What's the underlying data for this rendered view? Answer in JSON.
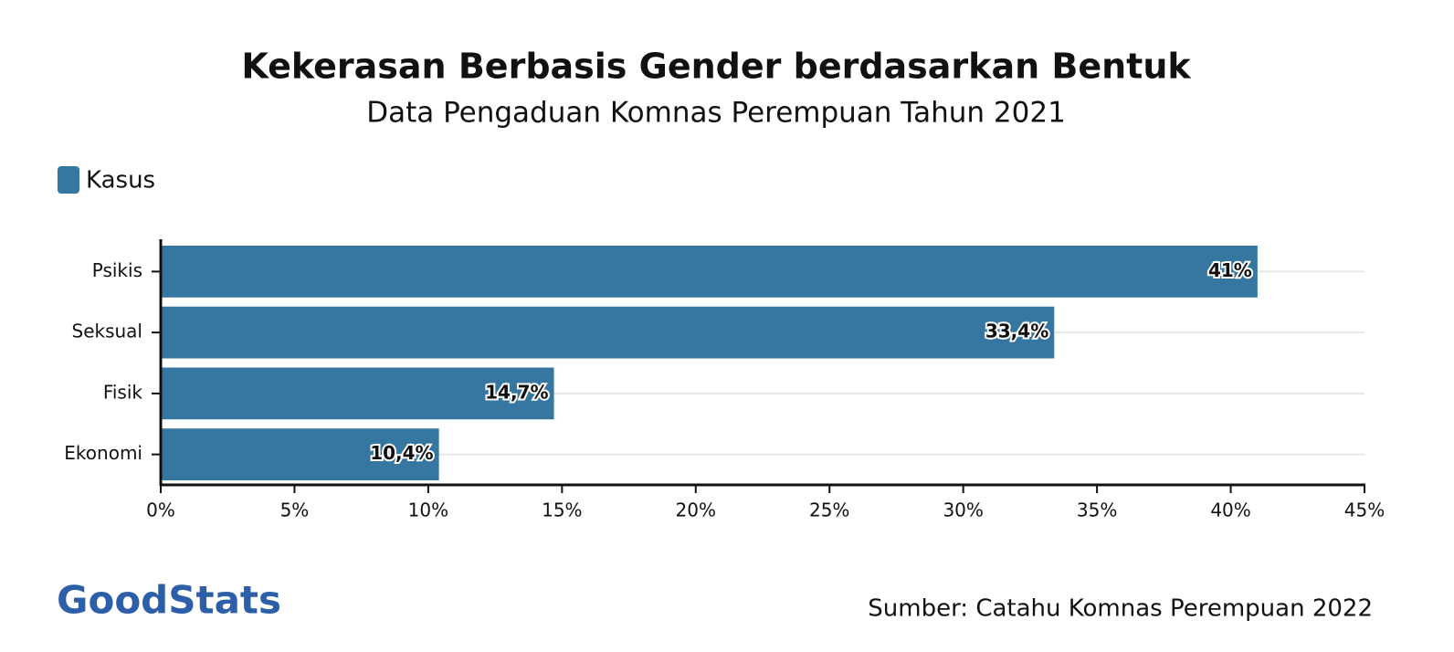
{
  "chart_data": {
    "type": "hbar",
    "title": "Kekerasan Berbasis Gender berdasarkan Bentuk",
    "subtitle": "Data Pengaduan Komnas Perempuan Tahun 2021",
    "categories": [
      "Psikis",
      "Seksual",
      "Fisik",
      "Ekonomi"
    ],
    "series": [
      {
        "name": "Kasus",
        "color": "#3577a0",
        "values": [
          41,
          33.4,
          14.7,
          10.4
        ],
        "value_labels": [
          "41%",
          "33,4%",
          "14,7%",
          "10,4%"
        ]
      }
    ],
    "xlim": [
      0,
      45
    ],
    "xticks": [
      {
        "value": 0,
        "label": "0%"
      },
      {
        "value": 5,
        "label": "5%"
      },
      {
        "value": 10,
        "label": "10%"
      },
      {
        "value": 15,
        "label": "15%"
      },
      {
        "value": 20,
        "label": "20%"
      },
      {
        "value": 25,
        "label": "25%"
      },
      {
        "value": 30,
        "label": "30%"
      },
      {
        "value": 35,
        "label": "35%"
      },
      {
        "value": 40,
        "label": "40%"
      },
      {
        "value": 45,
        "label": "45%"
      }
    ],
    "grid": true,
    "legend": "top-left",
    "source": "Sumber: Catahu Komnas Perempuan 2022",
    "logo": "GoodStats"
  }
}
